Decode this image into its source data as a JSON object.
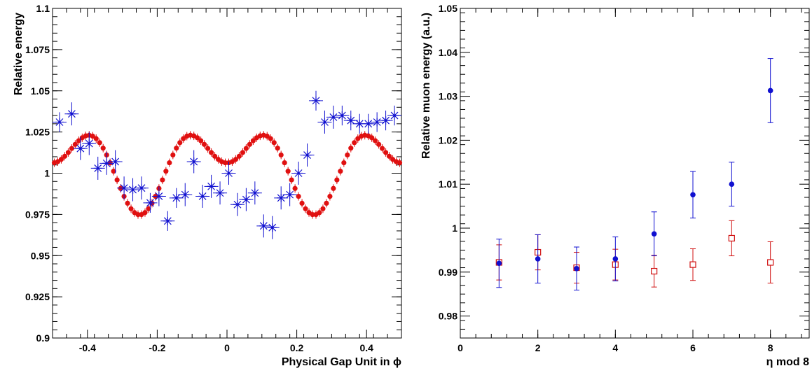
{
  "chart_data": [
    {
      "type": "scatter",
      "xlabel": "Physical Gap Unit in ϕ",
      "ylabel": "Relative energy",
      "xlim": [
        -0.5,
        0.5
      ],
      "ylim": [
        0.9,
        1.1
      ],
      "xticks": [
        -0.4,
        -0.2,
        0,
        0.2,
        0.4
      ],
      "xtick_labels": [
        "-0.4",
        "-0.2",
        "0",
        "0.2",
        "0.4"
      ],
      "yticks": [
        0.9,
        0.925,
        0.95,
        0.975,
        1,
        1.025,
        1.05,
        1.075,
        1.1
      ],
      "ytick_labels": [
        "0.9",
        "0.925",
        "0.95",
        "0.975",
        "1",
        "1.025",
        "1.05",
        "1.075",
        "1.1"
      ],
      "grid": false,
      "series": [
        {
          "marker": "star",
          "color": "#1010d0",
          "x": [
            -0.48,
            -0.445,
            -0.42,
            -0.395,
            -0.37,
            -0.345,
            -0.32,
            -0.295,
            -0.27,
            -0.245,
            -0.22,
            -0.195,
            -0.17,
            -0.145,
            -0.12,
            -0.095,
            -0.07,
            -0.045,
            -0.02,
            0.005,
            0.03,
            0.055,
            0.08,
            0.105,
            0.13,
            0.155,
            0.18,
            0.205,
            0.23,
            0.255,
            0.28,
            0.305,
            0.33,
            0.355,
            0.38,
            0.405,
            0.43,
            0.455,
            0.48
          ],
          "y": [
            1.031,
            1.036,
            1.015,
            1.018,
            1.003,
            1.006,
            1.007,
            0.991,
            0.99,
            0.991,
            0.982,
            0.986,
            0.971,
            0.985,
            0.987,
            1.007,
            0.986,
            0.992,
            0.988,
            1.0,
            0.981,
            0.984,
            0.988,
            0.968,
            0.967,
            0.985,
            0.987,
            1.0,
            1.011,
            1.044,
            1.031,
            1.034,
            1.035,
            1.032,
            1.03,
            1.03,
            1.031,
            1.032,
            1.035
          ],
          "yerr": [
            0.006,
            0.007,
            0.007,
            0.007,
            0.007,
            0.007,
            0.007,
            0.007,
            0.007,
            0.007,
            0.006,
            0.006,
            0.006,
            0.006,
            0.007,
            0.007,
            0.007,
            0.007,
            0.007,
            0.007,
            0.007,
            0.007,
            0.007,
            0.007,
            0.007,
            0.007,
            0.007,
            0.007,
            0.007,
            0.006,
            0.007,
            0.007,
            0.006,
            0.006,
            0.006,
            0.006,
            0.006,
            0.006,
            0.006
          ]
        },
        {
          "marker": "circle",
          "color": "#e01010",
          "curve": "fit",
          "curve_params": {
            "a0": 1.00575,
            "a1": 0.01575,
            "f1": 2,
            "a2": 0.01525,
            "f2": 4
          },
          "x_range": [
            -0.5,
            0.5
          ],
          "n_points": 100
        }
      ]
    },
    {
      "type": "scatter",
      "xlabel": "η mod 8",
      "ylabel": "Relative muon energy (a.u.)",
      "xlim": [
        0,
        9
      ],
      "ylim": [
        0.975,
        1.05
      ],
      "xticks": [
        0,
        2,
        4,
        6,
        8
      ],
      "xtick_labels": [
        "0",
        "2",
        "4",
        "6",
        "8"
      ],
      "yticks": [
        0.98,
        0.99,
        1.0,
        1.01,
        1.02,
        1.03,
        1.04,
        1.05
      ],
      "ytick_labels": [
        "0.98",
        "0.99",
        "1",
        "1.01",
        "1.02",
        "1.03",
        "1.04",
        "1.05"
      ],
      "grid": false,
      "series": [
        {
          "marker": "filled-circle",
          "color": "#1010d0",
          "x": [
            1,
            2,
            3,
            4,
            5,
            6,
            7,
            8
          ],
          "y": [
            0.992,
            0.993,
            0.9908,
            0.993,
            0.9987,
            1.0076,
            1.01,
            1.0313
          ],
          "yerr": [
            0.0055,
            0.0055,
            0.0049,
            0.005,
            0.005,
            0.0053,
            0.005,
            0.0073
          ]
        },
        {
          "marker": "open-square",
          "color": "#d01010",
          "x": [
            1,
            2,
            3,
            4,
            5,
            6,
            7,
            8
          ],
          "y": [
            0.9922,
            0.9945,
            0.991,
            0.9917,
            0.9902,
            0.9917,
            0.9977,
            0.9922
          ],
          "yerr": [
            0.004,
            0.004,
            0.0035,
            0.0035,
            0.0036,
            0.0036,
            0.004,
            0.0047
          ]
        }
      ]
    }
  ]
}
